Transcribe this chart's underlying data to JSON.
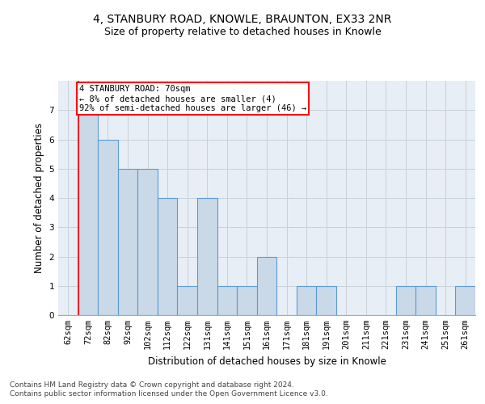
{
  "title1": "4, STANBURY ROAD, KNOWLE, BRAUNTON, EX33 2NR",
  "title2": "Size of property relative to detached houses in Knowle",
  "xlabel": "Distribution of detached houses by size in Knowle",
  "ylabel": "Number of detached properties",
  "categories": [
    "62sqm",
    "72sqm",
    "82sqm",
    "92sqm",
    "102sqm",
    "112sqm",
    "122sqm",
    "131sqm",
    "141sqm",
    "151sqm",
    "161sqm",
    "171sqm",
    "181sqm",
    "191sqm",
    "201sqm",
    "211sqm",
    "221sqm",
    "231sqm",
    "241sqm",
    "251sqm",
    "261sqm"
  ],
  "values": [
    0,
    7,
    6,
    5,
    5,
    4,
    1,
    4,
    1,
    1,
    2,
    0,
    1,
    1,
    0,
    0,
    0,
    1,
    1,
    0,
    1
  ],
  "bar_color": "#c9d9e8",
  "bar_edge_color": "#5b9bd5",
  "bar_linewidth": 0.8,
  "grid_color": "#c8d0d8",
  "bg_color": "#e8eef5",
  "annotation_text": "4 STANBURY ROAD: 70sqm\n← 8% of detached houses are smaller (4)\n92% of semi-detached houses are larger (46) →",
  "annotation_box_color": "white",
  "annotation_border_color": "red",
  "red_line_x": 0.5,
  "ylim": [
    0,
    8
  ],
  "yticks": [
    0,
    1,
    2,
    3,
    4,
    5,
    6,
    7
  ],
  "footer1": "Contains HM Land Registry data © Crown copyright and database right 2024.",
  "footer2": "Contains public sector information licensed under the Open Government Licence v3.0.",
  "title1_fontsize": 10,
  "title2_fontsize": 9,
  "xlabel_fontsize": 8.5,
  "ylabel_fontsize": 8.5,
  "tick_fontsize": 7.5,
  "footer_fontsize": 6.5,
  "ann_fontsize": 7.5
}
